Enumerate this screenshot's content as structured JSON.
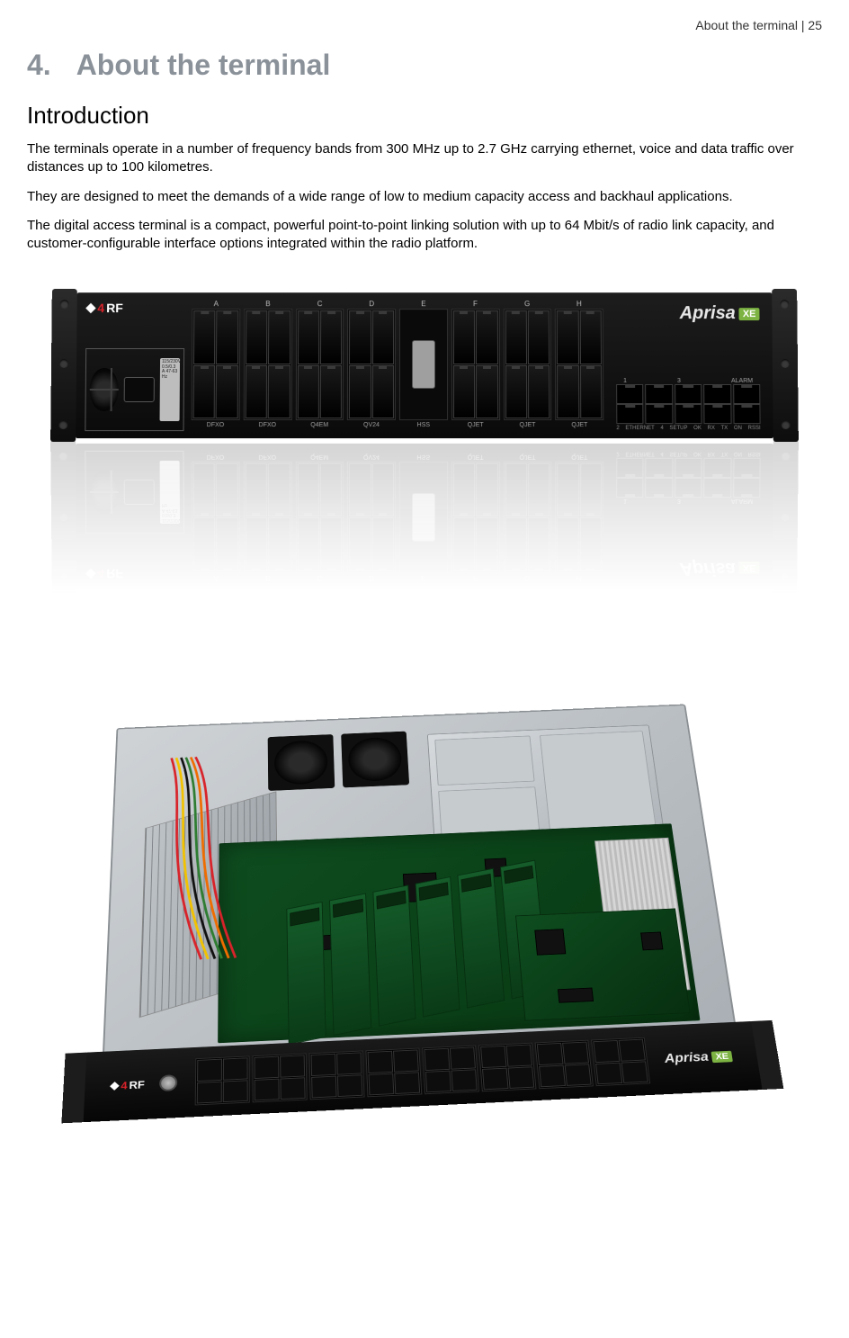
{
  "header": {
    "section_name": "About the terminal",
    "separator": "  |  ",
    "page_number": "25"
  },
  "chapter": {
    "number": "4.",
    "title": "About the terminal"
  },
  "section": {
    "title": "Introduction"
  },
  "paragraphs": {
    "p1": "The terminals operate in a number of frequency bands from 300 MHz up to 2.7 GHz carrying ethernet, voice and data traffic over distances up to 100 kilometres.",
    "p2": "They are designed to meet the demands of a wide range of low to medium capacity access and backhaul applications.",
    "p3": "The digital access terminal is a compact, powerful point-to-point linking solution with up to 64 Mbit/s of radio link capacity, and customer-configurable interface options integrated within the radio platform."
  },
  "figure1": {
    "type": "product-photo",
    "description": "front view of 2U rack-mount radio terminal with reflection",
    "brand_digit": "4",
    "brand_text": "RF",
    "brand_digit_color": "#d8232a",
    "product_name": "Aprisa",
    "product_suffix": "XE",
    "suffix_bg_color": "#7cb342",
    "psu_label_text": "115/230V 0.5/0.3 A 47-63 Hz",
    "slot_letters": [
      "A",
      "B",
      "C",
      "D",
      "E",
      "F",
      "G",
      "H"
    ],
    "slot_names": [
      "DFXO",
      "DFXO",
      "Q4EM",
      "QV24",
      "HSS",
      "QJET",
      "QJET",
      "QJET"
    ],
    "mgmt_top_labels": [
      "1",
      "3",
      "ALARM"
    ],
    "mgmt_bottom_labels": [
      "2",
      "ETHERNET",
      "4",
      "SETUP",
      "OK",
      "RX",
      "TX",
      "ON",
      "RSSI"
    ],
    "colors": {
      "chassis": "#0f0f0f",
      "ear": "#1a1a1a",
      "text_muted": "#9f9f9f",
      "metal": "#bfbfbf"
    }
  },
  "figure2": {
    "type": "product-photo",
    "description": "top-down open chassis showing internal PCB, fans, RF shielding, interface cards",
    "brand_digit": "4",
    "brand_text": "RF",
    "product_name": "Aprisa",
    "product_suffix": "XE",
    "colors": {
      "chassis_metal": "#c5cace",
      "pcb_green": "#0e4d1f",
      "pcb_dark": "#083812",
      "ribbon_grey": "#cccccc",
      "black": "#0c0c0c",
      "wire_red": "#d8232a",
      "wire_yellow": "#f2c200",
      "wire_black": "#111111",
      "wire_green": "#2e7d32",
      "wire_orange": "#ef6c00"
    },
    "card_count": 6,
    "heatsink_fins": 20
  }
}
